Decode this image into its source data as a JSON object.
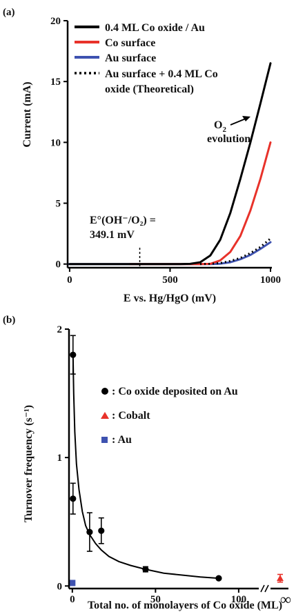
{
  "chart_data": [
    {
      "panel_label": "(a)",
      "type": "line",
      "xlabel": "E vs. Hg/HgO (mV)",
      "ylabel": "Current (mA)",
      "xlim": [
        -10,
        1000
      ],
      "ylim": [
        -0.3,
        20
      ],
      "xticks": [
        0,
        500,
        1000
      ],
      "yticks": [
        0,
        5,
        10,
        15,
        20
      ],
      "legend_position": "top-left",
      "series": [
        {
          "name": "0.4 ML Co oxide / Au",
          "color": "#000000",
          "style": "solid",
          "x": [
            0,
            300,
            550,
            600,
            650,
            700,
            750,
            800,
            850,
            900,
            950,
            1000
          ],
          "y": [
            0,
            0,
            0,
            0.02,
            0.15,
            0.7,
            2.0,
            4.2,
            7.0,
            10.0,
            13.2,
            16.5
          ]
        },
        {
          "name": "Co surface",
          "color": "#e8322a",
          "style": "solid",
          "x": [
            300,
            650,
            700,
            750,
            800,
            850,
            900,
            950,
            1000
          ],
          "y": [
            0,
            0,
            0.02,
            0.3,
            1.0,
            2.3,
            4.4,
            7.0,
            10.0
          ]
        },
        {
          "name": "Au surface",
          "color": "#3e52b0",
          "style": "solid",
          "x": [
            -10,
            300,
            700,
            750,
            800,
            850,
            900,
            950,
            1000
          ],
          "y": [
            0,
            0,
            0,
            0.03,
            0.15,
            0.4,
            0.75,
            1.25,
            1.8
          ]
        },
        {
          "name": "Au surface + 0.4 ML Co oxide (Theoretical)",
          "color": "#000000",
          "style": "dotted",
          "x": [
            650,
            700,
            750,
            800,
            850,
            900,
            950,
            1000
          ],
          "y": [
            0,
            0.02,
            0.08,
            0.25,
            0.5,
            0.9,
            1.4,
            2.1
          ]
        }
      ],
      "annotations": [
        {
          "text_main": "O",
          "text_sub": "2",
          "text_line2": "evolution",
          "x": 865,
          "y": 10.6
        },
        {
          "line1": "E°(OH⁻/O₂) =",
          "line2": "349.1 mV",
          "x": 349.1
        }
      ]
    },
    {
      "panel_label": "(b)",
      "type": "scatter",
      "xlabel": "Total no. of monolayers of Co oxide (ML)",
      "ylabel": "Turnover frequency (s⁻¹)",
      "xlim": [
        -2,
        110
      ],
      "ylim": [
        -0.02,
        2
      ],
      "xticks": [
        0,
        50,
        100
      ],
      "yticks": [
        0,
        1,
        2
      ],
      "broken_axis_tick": "∞",
      "legend_position": "center-right",
      "series": [
        {
          "name": ": Co oxide deposited on Au",
          "color": "#000000",
          "marker": "circle",
          "x": [
            0.4,
            0.4,
            10.4,
            17.4,
            44,
            88
          ],
          "y": [
            1.8,
            0.68,
            0.42,
            0.43,
            0.13,
            0.06
          ],
          "err": [
            0.15,
            0.12,
            0.15,
            0.1,
            0.02,
            0.01
          ]
        },
        {
          "name": ": Cobalt",
          "color": "#e8322a",
          "marker": "triangle",
          "x": [
            "∞"
          ],
          "y": [
            0.06
          ],
          "err": [
            0.03
          ]
        },
        {
          "name": ": Au",
          "color": "#3e52b0",
          "marker": "square",
          "x": [
            0
          ],
          "y": [
            0.01
          ]
        }
      ],
      "fit_curve": {
        "x": [
          0.4,
          0.8,
          1.5,
          2.5,
          4,
          6,
          8,
          10.4,
          14,
          17.4,
          22,
          28,
          35,
          44,
          55,
          66,
          77,
          88
        ],
        "y": [
          1.8,
          1.5,
          1.2,
          0.95,
          0.75,
          0.58,
          0.47,
          0.4,
          0.33,
          0.28,
          0.23,
          0.19,
          0.16,
          0.13,
          0.1,
          0.085,
          0.07,
          0.06
        ]
      }
    }
  ]
}
